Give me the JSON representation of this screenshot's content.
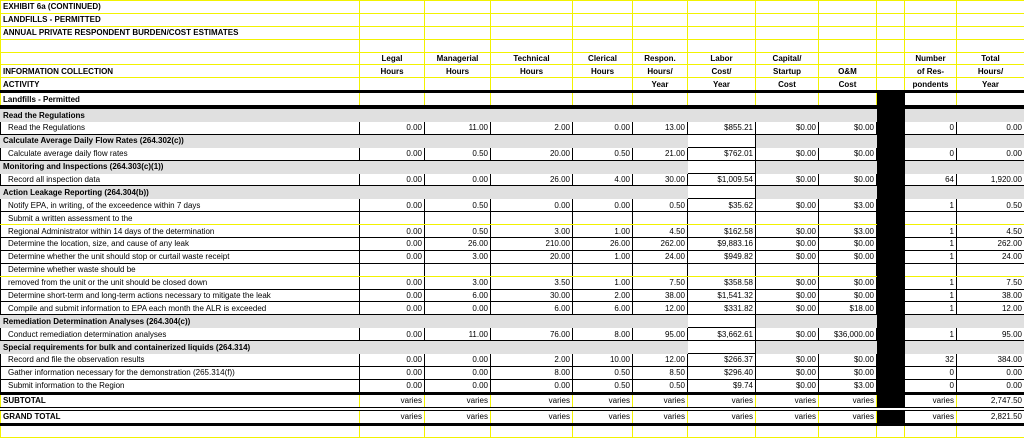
{
  "titles": [
    "EXHIBIT 6a (CONTINUED)",
    "LANDFILLS - PERMITTED",
    "ANNUAL PRIVATE RESPONDENT BURDEN/COST ESTIMATES"
  ],
  "header": {
    "rows": [
      [
        "",
        "Legal",
        "Managerial",
        "Technical",
        "Clerical",
        "Respon.",
        "Labor",
        "Capital/",
        "",
        "",
        "Number",
        "Total"
      ],
      [
        "INFORMATION COLLECTION",
        "Hours",
        "Hours",
        "Hours",
        "Hours",
        "Hours/",
        "Cost/",
        "Startup",
        "O&M",
        "",
        "of Res-",
        "Hours/"
      ],
      [
        "ACTIVITY",
        "",
        "",
        "",
        "",
        "Year",
        "Year",
        "Cost",
        "Cost",
        "",
        "pondents",
        "Year"
      ]
    ]
  },
  "subheading": "Landfills - Permitted",
  "rows": [
    {
      "type": "section",
      "label": "Read the Regulations"
    },
    {
      "type": "data",
      "label": "Read the Regulations",
      "values": [
        "0.00",
        "11.00",
        "2.00",
        "0.00",
        "13.00",
        "$855.21",
        "$0.00",
        "$0.00",
        "0",
        "0.00"
      ]
    },
    {
      "type": "section",
      "label": "Calculate Average Daily Flow Rates (264.302(c))"
    },
    {
      "type": "data",
      "label": "Calculate average daily flow rates",
      "values": [
        "0.00",
        "0.50",
        "20.00",
        "0.50",
        "21.00",
        "$762.01",
        "$0.00",
        "$0.00",
        "0",
        "0.00"
      ]
    },
    {
      "type": "section",
      "label": "Monitoring and Inspections (264.303(c)(1))"
    },
    {
      "type": "data",
      "label": "Record all inspection data",
      "values": [
        "0.00",
        "0.00",
        "26.00",
        "4.00",
        "30.00",
        "$1,009.54",
        "$0.00",
        "$0.00",
        "64",
        "1,920.00"
      ]
    },
    {
      "type": "section",
      "label": "Action Leakage Reporting (264.304(b))"
    },
    {
      "type": "data",
      "label": "Notify EPA, in writing, of the exceedence within 7 days",
      "values": [
        "0.00",
        "0.50",
        "0.00",
        "0.00",
        "0.50",
        "$35.62",
        "$0.00",
        "$3.00",
        "1",
        "0.50"
      ]
    },
    {
      "type": "text",
      "label": "Submit a written assessment to the"
    },
    {
      "type": "data",
      "label": "Regional Administrator within 14 days of the determination",
      "values": [
        "0.00",
        "0.50",
        "3.00",
        "1.00",
        "4.50",
        "$162.58",
        "$0.00",
        "$3.00",
        "1",
        "4.50"
      ]
    },
    {
      "type": "data",
      "label": "Determine the location, size, and cause of any leak",
      "values": [
        "0.00",
        "26.00",
        "210.00",
        "26.00",
        "262.00",
        "$9,883.16",
        "$0.00",
        "$0.00",
        "1",
        "262.00"
      ]
    },
    {
      "type": "data",
      "label": "Determine whether the unit should stop or curtail waste receipt",
      "values": [
        "0.00",
        "3.00",
        "20.00",
        "1.00",
        "24.00",
        "$949.82",
        "$0.00",
        "$0.00",
        "1",
        "24.00"
      ]
    },
    {
      "type": "text",
      "label": "Determine whether waste should be"
    },
    {
      "type": "data",
      "label": "removed from the unit or the unit should be closed down",
      "values": [
        "0.00",
        "3.00",
        "3.50",
        "1.00",
        "7.50",
        "$358.58",
        "$0.00",
        "$0.00",
        "1",
        "7.50"
      ]
    },
    {
      "type": "data",
      "label": "Determine short-term and long-term actions necessary to mitigate the leak",
      "values": [
        "0.00",
        "6.00",
        "30.00",
        "2.00",
        "38.00",
        "$1,541.32",
        "$0.00",
        "$0.00",
        "1",
        "38.00"
      ]
    },
    {
      "type": "data",
      "label": "Compile and submit information to EPA each month the ALR is exceeded",
      "values": [
        "0.00",
        "0.00",
        "6.00",
        "6.00",
        "12.00",
        "$331.82",
        "$0.00",
        "$18.00",
        "1",
        "12.00"
      ]
    },
    {
      "type": "section",
      "label": "Remediation Determination Analyses (264.304(c))"
    },
    {
      "type": "data",
      "label": "Conduct remediation determination analyses",
      "values": [
        "0.00",
        "11.00",
        "76.00",
        "8.00",
        "95.00",
        "$3,662.61",
        "$0.00",
        "$36,000.00",
        "1",
        "95.00"
      ]
    },
    {
      "type": "section",
      "label": "Special requirements for bulk and containerized liquids (264.314)"
    },
    {
      "type": "data",
      "label": "Record and file the observation results",
      "values": [
        "0.00",
        "0.00",
        "2.00",
        "10.00",
        "12.00",
        "$266.37",
        "$0.00",
        "$0.00",
        "32",
        "384.00"
      ]
    },
    {
      "type": "data",
      "label": "Gather information necessary for the demonstration (265.314(f))",
      "values": [
        "0.00",
        "0.00",
        "8.00",
        "0.50",
        "8.50",
        "$296.40",
        "$0.00",
        "$0.00",
        "0",
        "0.00"
      ]
    },
    {
      "type": "data",
      "label": "Submit information to the Region",
      "values": [
        "0.00",
        "0.00",
        "0.00",
        "0.50",
        "0.50",
        "$9.74",
        "$0.00",
        "$3.00",
        "0",
        "0.00"
      ]
    },
    {
      "type": "total",
      "label": "SUBTOTAL",
      "values": [
        "varies",
        "varies",
        "varies",
        "varies",
        "varies",
        "varies",
        "varies",
        "varies",
        "varies",
        "2,747.50"
      ]
    },
    {
      "type": "total",
      "label": "GRAND TOTAL",
      "values": [
        "varies",
        "varies",
        "varies",
        "varies",
        "varies",
        "varies",
        "varies",
        "varies",
        "varies",
        "2,821.50"
      ]
    }
  ],
  "colors": {
    "grid": "#f2f200",
    "section_bg": "#e0e0e0",
    "separator": "#000000"
  }
}
